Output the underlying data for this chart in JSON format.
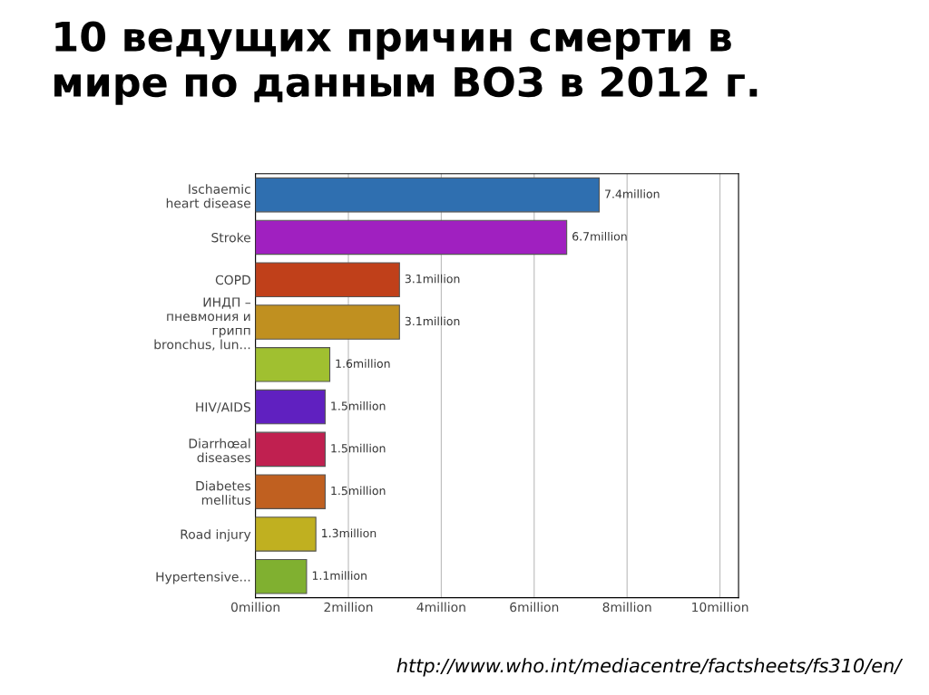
{
  "chart_data": {
    "type": "bar",
    "orientation": "horizontal",
    "title": "10 ведущих причин смерти в\nмире по данным ВОЗ в 2012 г.",
    "categories": [
      "Ischaemic\nheart disease",
      "Stroke",
      "COPD",
      "ИНДП –\nпневмония и\nгрипп\nbronchus, lun...",
      null,
      "HIV/AIDS",
      "Diarrhœal\ndiseases",
      "Diabetes\nmellitus",
      "Road injury",
      "Hypertensive..."
    ],
    "values": [
      7.4,
      6.7,
      3.1,
      3.1,
      1.6,
      1.5,
      1.5,
      1.5,
      1.3,
      1.1
    ],
    "colors": [
      "#2f6fb0",
      "#a020c0",
      "#c0401a",
      "#c09020",
      "#a0c030",
      "#6020c0",
      "#c02050",
      "#c06020",
      "#c0b020",
      "#80b030"
    ],
    "value_labels": [
      "7.4million",
      "6.7million",
      "3.1million",
      "3.1million",
      "1.6million",
      "1.5million",
      "1.5million",
      "1.5million",
      "1.3million",
      "1.1million"
    ],
    "xlim": [
      0,
      10.4
    ],
    "xticks": [
      {
        "value": 0,
        "label": "0million"
      },
      {
        "value": 2,
        "label": "2million"
      },
      {
        "value": 4,
        "label": "4million"
      },
      {
        "value": 6,
        "label": "6million"
      },
      {
        "value": 8,
        "label": "8million"
      },
      {
        "value": 10,
        "label": "10million"
      }
    ],
    "grid": "x",
    "annotations": [
      "http://www.who.int/mediacentre/factsheets/fs310/en/"
    ]
  }
}
